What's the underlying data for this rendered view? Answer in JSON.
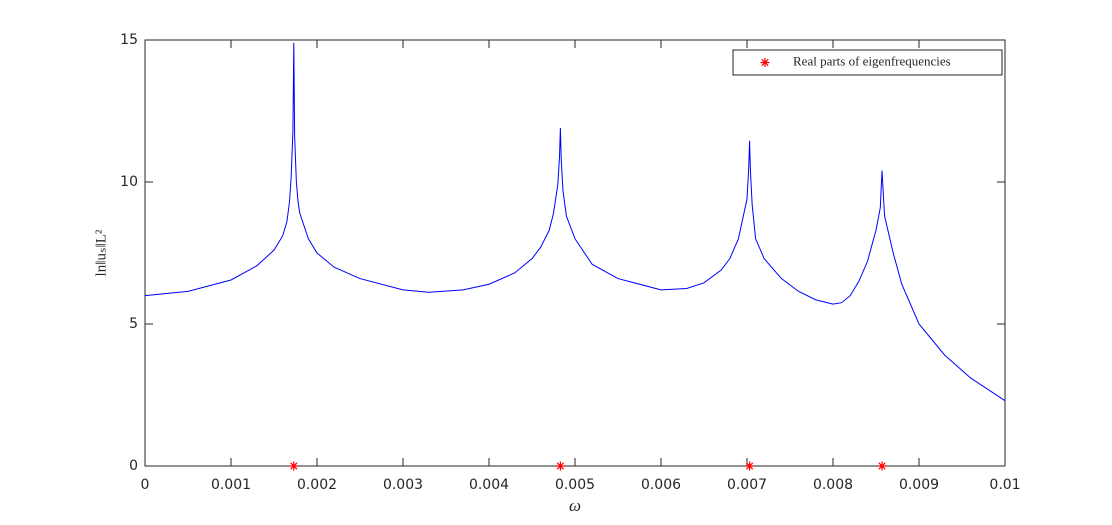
{
  "chart_data": {
    "type": "line",
    "x_label": "ω",
    "y_label": "ln‖uₛ‖L²",
    "xlim": [
      0,
      0.01
    ],
    "ylim": [
      0,
      15
    ],
    "xticks": [
      0,
      0.001,
      0.002,
      0.003,
      0.004,
      0.005,
      0.006,
      0.007,
      0.008,
      0.009,
      0.01
    ],
    "yticks": [
      0,
      5,
      10,
      15
    ],
    "legend": "upper right",
    "series": [
      {
        "type": "line",
        "color": "#0000ff",
        "x": [
          0,
          0.0005,
          0.001,
          0.0013,
          0.0015,
          0.0016,
          0.00165,
          0.00168,
          0.0017,
          0.00172,
          0.00173,
          0.00174,
          0.00176,
          0.00178,
          0.0018,
          0.0019,
          0.002,
          0.0022,
          0.0025,
          0.003,
          0.0033,
          0.0037,
          0.004,
          0.0043,
          0.0045,
          0.0046,
          0.0047,
          0.00475,
          0.0048,
          0.00482,
          0.00483,
          0.00484,
          0.00486,
          0.0049,
          0.005,
          0.0052,
          0.0055,
          0.006,
          0.0063,
          0.0065,
          0.0067,
          0.0068,
          0.0069,
          0.007,
          0.00702,
          0.00703,
          0.00704,
          0.00706,
          0.0071,
          0.0072,
          0.0074,
          0.0076,
          0.0078,
          0.008,
          0.0081,
          0.0082,
          0.0083,
          0.0084,
          0.0085,
          0.00855,
          0.00857,
          0.00859,
          0.0086,
          0.0087,
          0.0088,
          0.009,
          0.0093,
          0.0096,
          0.01
        ],
        "values": [
          6.0,
          6.15,
          6.55,
          7.05,
          7.6,
          8.1,
          8.6,
          9.3,
          10.2,
          11.8,
          14.9,
          11.6,
          10.0,
          9.3,
          8.9,
          8.0,
          7.5,
          7.0,
          6.6,
          6.2,
          6.12,
          6.2,
          6.4,
          6.8,
          7.3,
          7.7,
          8.3,
          8.9,
          9.9,
          10.9,
          11.9,
          10.8,
          9.7,
          8.8,
          8.0,
          7.1,
          6.6,
          6.2,
          6.25,
          6.45,
          6.9,
          7.3,
          8.0,
          9.4,
          10.5,
          11.45,
          10.4,
          9.2,
          8.0,
          7.3,
          6.6,
          6.15,
          5.85,
          5.7,
          5.75,
          6.0,
          6.5,
          7.2,
          8.3,
          9.1,
          10.4,
          9.3,
          8.8,
          7.5,
          6.4,
          5.0,
          3.9,
          3.1,
          2.3
        ]
      },
      {
        "type": "scatter",
        "name": "Real parts of eigenfrequencies",
        "color": "#ff0000",
        "x": [
          0.00173,
          0.00483,
          0.00703,
          0.00857
        ],
        "values": [
          0,
          0,
          0,
          0
        ]
      }
    ]
  }
}
